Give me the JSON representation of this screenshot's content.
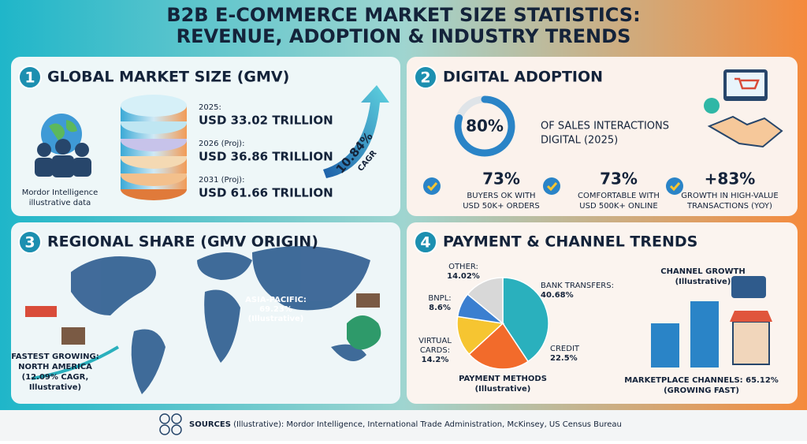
{
  "header": {
    "title_lines": [
      "B2B E-COMMERCE MARKET SIZE STATISTICS:",
      "REVENUE, ADOPTION & INDUSTRY TRENDS"
    ]
  },
  "panels": [
    {
      "number": "1",
      "heading": "GLOBAL MARKET SIZE (GMV)",
      "source_note_lines": [
        "Mordor Intelligence",
        "illustrative data"
      ],
      "entries": [
        {
          "label": "2025:",
          "value": "USD 33.02 TRILLION"
        },
        {
          "label": "2026 (Proj):",
          "value": "USD 36.86 TRILLION"
        },
        {
          "label": "2031 (Proj):",
          "value": "USD 61.66 TRILLION"
        }
      ],
      "cagr": {
        "value": "10.84%",
        "label": "CAGR"
      }
    },
    {
      "number": "2",
      "heading": "DIGITAL ADOPTION",
      "ring": {
        "value": 80,
        "label": "80%",
        "caption_lines": [
          "OF SALES INTERACTIONS",
          "DIGITAL (2025)"
        ]
      },
      "stats": [
        {
          "value": "73%",
          "caption_lines": [
            "BUYERS OK WITH",
            "USD 50K+ ORDERS"
          ]
        },
        {
          "value": "73%",
          "caption_lines": [
            "COMFORTABLE WITH",
            "USD 500K+ ONLINE"
          ]
        },
        {
          "value": "+83%",
          "caption_lines": [
            "GROWTH IN HIGH-VALUE",
            "TRANSACTIONS (YOY)"
          ]
        }
      ]
    },
    {
      "number": "3",
      "heading": "REGIONAL SHARE (GMV ORIGIN)",
      "asia_pacific_lines": [
        "ASIA-PACIFIC:",
        "69.23%",
        "(Illustrative)"
      ],
      "fastest_growing_lines": [
        "FASTEST GROWING:",
        "NORTH AMERICA",
        "(12.09% CAGR,",
        "Illustrative)"
      ]
    },
    {
      "number": "4",
      "heading": "PAYMENT & CHANNEL TRENDS",
      "pie": {
        "slices": [
          {
            "name_lines": [
              "BANK TRANSFERS:"
            ],
            "value": 40.68,
            "value_label": "40.68%",
            "color": "#2ab0bd"
          },
          {
            "name_lines": [
              "CREDIT"
            ],
            "value": 22.5,
            "value_label": "22.5%",
            "color": "#f26b2b"
          },
          {
            "name_lines": [
              "VIRTUAL",
              "CARDS:"
            ],
            "value": 14.2,
            "value_label": "14.2%",
            "color": "#f6c531"
          },
          {
            "name_lines": [
              "BNPL:"
            ],
            "value": 8.6,
            "value_label": "8.6%",
            "color": "#3b7fd0"
          },
          {
            "name_lines": [
              "OTHER:"
            ],
            "value": 14.02,
            "value_label": "14.02%",
            "color": "#d8d8d8"
          }
        ],
        "caption_lines": [
          "PAYMENT METHODS",
          "(Illustrative)"
        ]
      },
      "channel_title_lines": [
        "CHANNEL GROWTH",
        "(Illustrative)"
      ],
      "marketplace_lines": [
        "MARKETPLACE CHANNELS: 65.12%",
        "(GROWING FAST)"
      ]
    }
  ],
  "footer": {
    "sources_label": "SOURCES",
    "sources_text": " (Illustrative): Mordor Intelligence, International Trade Administration, McKinsey, US Census Bureau"
  }
}
